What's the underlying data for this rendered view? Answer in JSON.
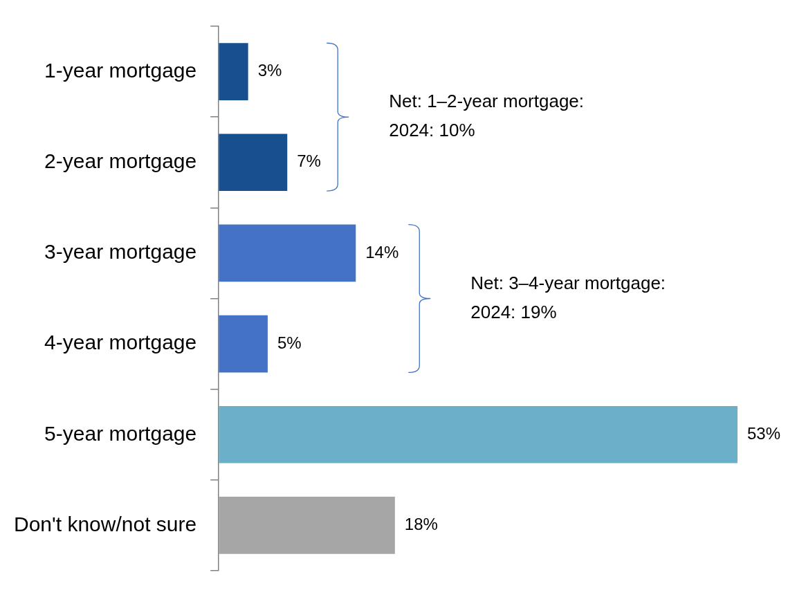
{
  "chart_data": {
    "type": "bar",
    "orientation": "horizontal",
    "categories": [
      "1-year mortgage",
      "2-year mortgage",
      "3-year mortgage",
      "4-year mortgage",
      "5-year mortgage",
      "Don't know/not sure"
    ],
    "values": [
      3,
      7,
      14,
      5,
      53,
      18
    ],
    "colors": [
      "#174f8f",
      "#174f8f",
      "#4472c4",
      "#4472c4",
      "#6bb0c8",
      "#a6a6a6"
    ],
    "value_labels": [
      "3%",
      "7%",
      "14%",
      "5%",
      "53%",
      "18%"
    ],
    "tick_labels": "y",
    "legend": false,
    "annotations": [
      "Net: 1–2-year mortgage:\n2024: 10%",
      "Net: 3–4-year mortgage:\n2024: 19%"
    ]
  }
}
